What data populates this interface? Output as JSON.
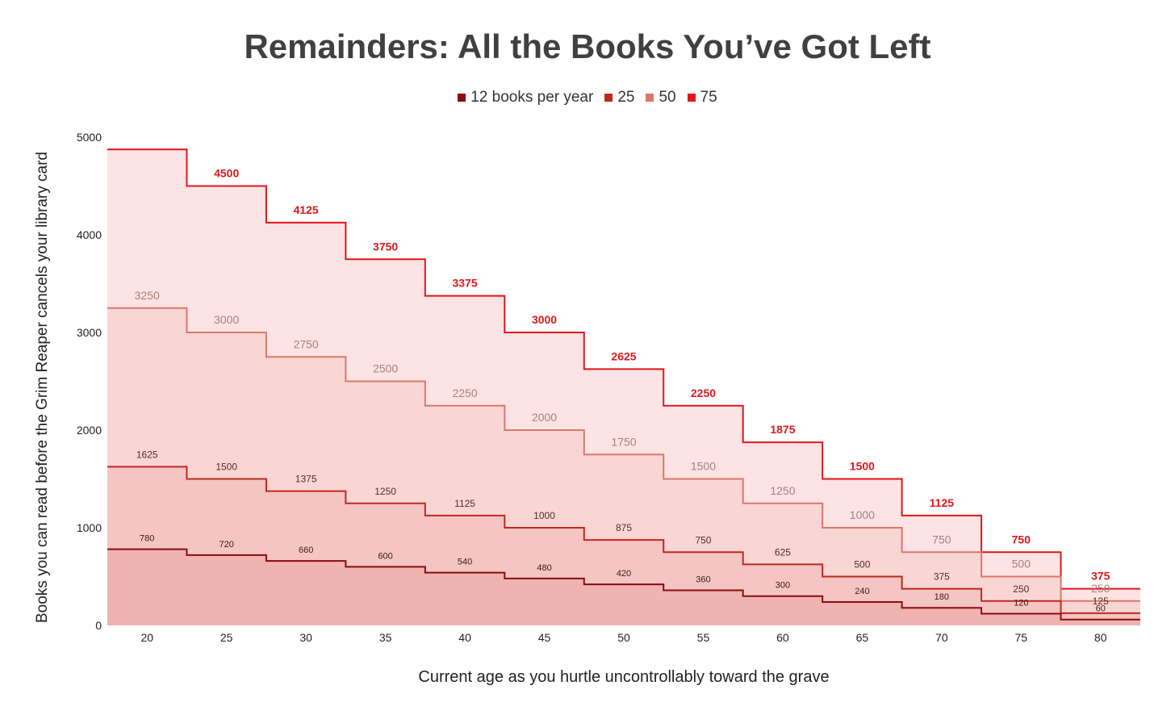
{
  "chart_data": {
    "type": "area",
    "step": true,
    "title": "Remainders: All the Books You’ve Got Left",
    "xlabel": "Current age as you hurtle uncontrollably toward the grave",
    "ylabel": "Books you can read before the Grim Reaper cancels your library card",
    "x": [
      20,
      25,
      30,
      35,
      40,
      45,
      50,
      55,
      60,
      65,
      70,
      75,
      80
    ],
    "x_ticks": [
      "20",
      "25",
      "30",
      "35",
      "40",
      "45",
      "50",
      "55",
      "60",
      "65",
      "70",
      "75",
      "80"
    ],
    "y_ticks": [
      "0",
      "1000",
      "2000",
      "3000",
      "4000",
      "5000"
    ],
    "ylim": [
      0,
      5000
    ],
    "legend_position": "top-center",
    "series": [
      {
        "name": "75",
        "color": "#e0161b",
        "fill": "#fde3e3",
        "values": [
          4875,
          4500,
          4125,
          3750,
          3375,
          3000,
          2625,
          2250,
          1875,
          1500,
          1125,
          750,
          375
        ],
        "labels": [
          "",
          "4500",
          "4125",
          "3750",
          "3375",
          "3000",
          "2625",
          "2250",
          "1875",
          "1500",
          "1125",
          "750",
          "375"
        ]
      },
      {
        "name": "50",
        "color": "#d9786b",
        "fill": "#f9d6d4",
        "values": [
          3250,
          3000,
          2750,
          2500,
          2250,
          2000,
          1750,
          1500,
          1250,
          1000,
          750,
          500,
          250
        ],
        "labels": [
          "3250",
          "3000",
          "2750",
          "2500",
          "2250",
          "2000",
          "1750",
          "1500",
          "1250",
          "1000",
          "750",
          "500",
          "250"
        ]
      },
      {
        "name": "25",
        "color": "#c1281c",
        "fill": "#f4c5c3",
        "values": [
          1625,
          1500,
          1375,
          1250,
          1125,
          1000,
          875,
          750,
          625,
          500,
          375,
          250,
          125
        ],
        "labels": [
          "1625",
          "1500",
          "1375",
          "1250",
          "1125",
          "1000",
          "875",
          "750",
          "625",
          "500",
          "375",
          "250",
          "125"
        ]
      },
      {
        "name": "12 books per year",
        "color": "#8b0c0c",
        "fill": "#efb3b1",
        "values": [
          780,
          720,
          660,
          600,
          540,
          480,
          420,
          360,
          300,
          240,
          180,
          120,
          60
        ],
        "labels": [
          "780",
          "720",
          "660",
          "600",
          "540",
          "480",
          "420",
          "360",
          "300",
          "240",
          "180",
          "120",
          "60"
        ]
      }
    ],
    "legend": [
      {
        "label": "12 books per year",
        "color": "#8b0c0c"
      },
      {
        "label": "25",
        "color": "#c1281c"
      },
      {
        "label": "50",
        "color": "#d9786b"
      },
      {
        "label": "75",
        "color": "#e0161b"
      }
    ]
  }
}
